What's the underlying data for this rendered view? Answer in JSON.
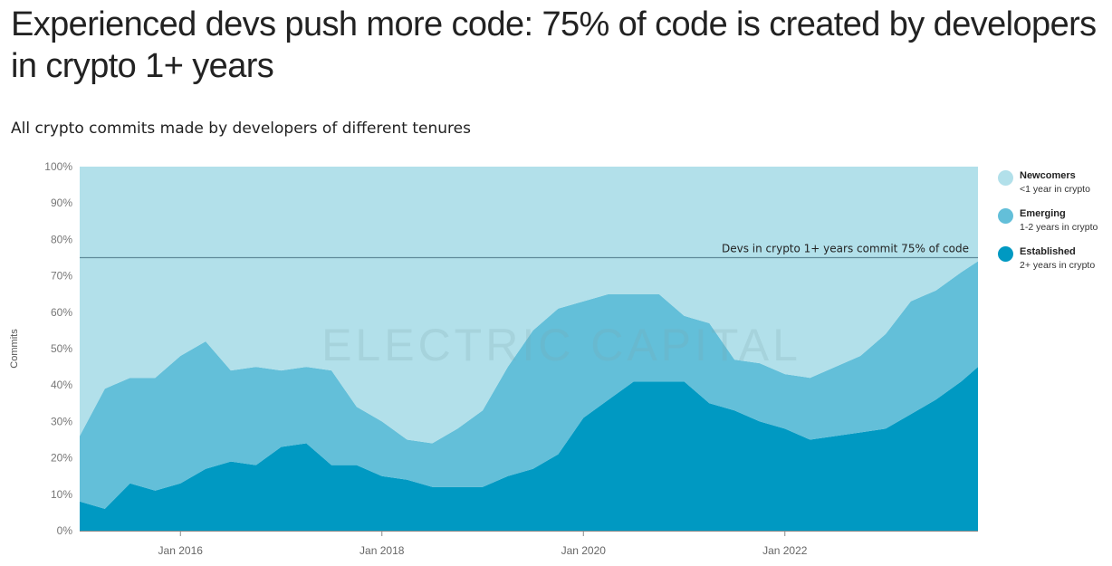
{
  "header": {
    "title": "Experienced devs push more code: 75% of code is created by developers in crypto 1+ years",
    "subtitle": "All crypto commits made by developers of different tenures",
    "watermark": "ELECTRIC CAPITAL"
  },
  "colors": {
    "newcomers": "#b2e0ea",
    "emerging": "#63bfd9",
    "established": "#0099c2",
    "reference_line": "#5f8a99"
  },
  "legend": [
    {
      "name": "Newcomers",
      "desc": "<1 year in crypto",
      "color": "#b2e0ea"
    },
    {
      "name": "Emerging",
      "desc": "1-2 years in crypto",
      "color": "#63bfd9"
    },
    {
      "name": "Established",
      "desc": "2+ years in crypto",
      "color": "#0099c2"
    }
  ],
  "chart_data": {
    "type": "area",
    "stacked": true,
    "normalized": true,
    "ylabel": "Commits",
    "ylim": [
      0,
      100
    ],
    "yticks": [
      "0%",
      "10%",
      "20%",
      "30%",
      "40%",
      "50%",
      "60%",
      "70%",
      "80%",
      "90%",
      "100%"
    ],
    "xticks": [
      "Jan 2016",
      "Jan 2018",
      "Jan 2020",
      "Jan 2022"
    ],
    "xrange": [
      "2015-01",
      "2023-12"
    ],
    "reference_line": {
      "value": 75,
      "label": "Devs in crypto 1+ years commit 75% of code"
    },
    "x": [
      "2015-01",
      "2015-04",
      "2015-07",
      "2015-10",
      "2016-01",
      "2016-04",
      "2016-07",
      "2016-10",
      "2017-01",
      "2017-04",
      "2017-07",
      "2017-10",
      "2018-01",
      "2018-04",
      "2018-07",
      "2018-10",
      "2019-01",
      "2019-04",
      "2019-07",
      "2019-10",
      "2020-01",
      "2020-04",
      "2020-07",
      "2020-10",
      "2021-01",
      "2021-04",
      "2021-07",
      "2021-10",
      "2022-01",
      "2022-04",
      "2022-07",
      "2022-10",
      "2023-01",
      "2023-04",
      "2023-07",
      "2023-10",
      "2023-12"
    ],
    "series": [
      {
        "name": "Established",
        "description": "2+ years in crypto",
        "values": [
          8,
          6,
          13,
          11,
          13,
          17,
          19,
          18,
          23,
          24,
          18,
          18,
          15,
          14,
          12,
          12,
          12,
          15,
          17,
          21,
          31,
          36,
          41,
          41,
          41,
          35,
          33,
          30,
          28,
          25,
          26,
          27,
          28,
          32,
          36,
          41,
          45
        ]
      },
      {
        "name": "Emerging",
        "description": "1-2 years in crypto",
        "values": [
          18,
          33,
          29,
          31,
          35,
          35,
          25,
          27,
          21,
          21,
          26,
          16,
          15,
          11,
          12,
          16,
          21,
          30,
          38,
          40,
          32,
          29,
          24,
          24,
          18,
          22,
          14,
          16,
          15,
          17,
          19,
          21,
          26,
          31,
          30,
          30,
          29
        ]
      },
      {
        "name": "Newcomers",
        "description": "<1 year in crypto",
        "values": [
          74,
          61,
          58,
          58,
          52,
          48,
          56,
          55,
          56,
          55,
          56,
          66,
          70,
          75,
          76,
          72,
          67,
          55,
          45,
          39,
          37,
          35,
          35,
          35,
          41,
          43,
          53,
          54,
          57,
          58,
          55,
          52,
          46,
          37,
          34,
          29,
          26
        ]
      }
    ]
  }
}
